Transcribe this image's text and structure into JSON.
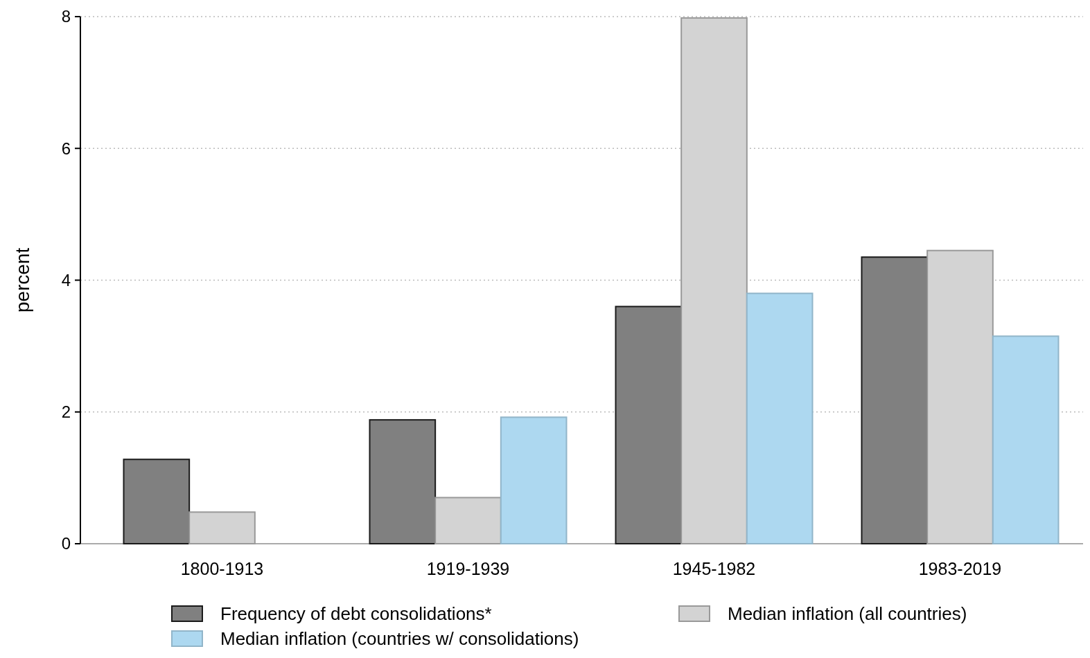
{
  "chart_data": {
    "type": "bar",
    "ylabel": "percent",
    "categories": [
      "1800-1913",
      "1919-1939",
      "1945-1982",
      "1983-2019"
    ],
    "series": [
      {
        "name": "Frequency of debt consolidations*",
        "color": "#808080",
        "values": [
          1.28,
          1.88,
          3.6,
          4.35
        ]
      },
      {
        "name": "Median inflation (all countries)",
        "color": "#d3d3d3",
        "values": [
          0.48,
          0.7,
          7.98,
          4.45
        ]
      },
      {
        "name": "Median inflation (countries w/ consolidations)",
        "color": "#add8f0",
        "values": [
          null,
          1.92,
          3.8,
          3.15
        ]
      }
    ],
    "ylim": [
      0,
      8
    ],
    "yticks": [
      0,
      2,
      4,
      6,
      8
    ],
    "grid": "y",
    "legend": "bottom"
  }
}
